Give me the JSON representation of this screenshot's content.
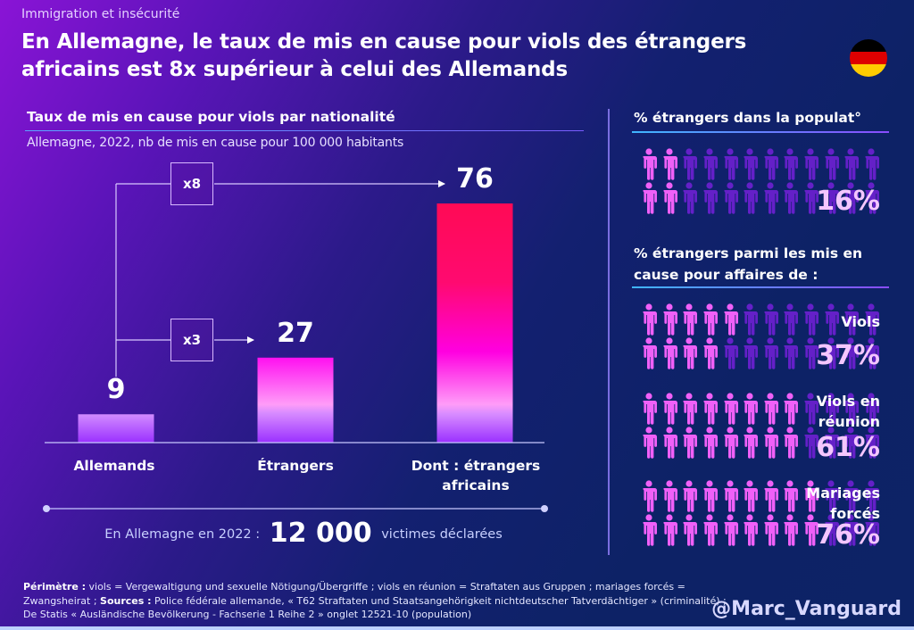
{
  "header": {
    "kicker": "Immigration et insécurité",
    "title": "En Allemagne, le taux de mis en cause pour viols des étrangers africains est 8x supérieur à celui des Allemands",
    "flag_icon": "germany-flag-icon",
    "flag_colors": [
      "#000000",
      "#dd0000",
      "#ffcc00"
    ]
  },
  "chart_data": {
    "type": "bar",
    "title": "Taux de mis en cause pour viols par nationalité",
    "subtitle": "Allemagne, 2022, nb de mis en cause pour 100 000 habitants",
    "categories": [
      "Allemands",
      "Étrangers",
      "Dont : étrangers africains"
    ],
    "values": [
      9,
      27,
      76
    ],
    "value_labels": [
      "9",
      "27",
      "76"
    ],
    "xlabel": "",
    "ylabel": "",
    "ylim": [
      0,
      76
    ],
    "grid": false,
    "annotations": [
      {
        "label": "x3",
        "from": "Allemands",
        "to": "Étrangers"
      },
      {
        "label": "x8",
        "from": "Allemands",
        "to": "Dont : étrangers africains"
      }
    ]
  },
  "victims": {
    "prefix": "En Allemagne en 2022 :",
    "number": "12 000",
    "suffix": "victimes déclarées"
  },
  "right_panel": {
    "population": {
      "heading": "% étrangers dans la populat°",
      "pct": "16%",
      "value": 16,
      "highlighted_per_row": [
        2,
        2
      ]
    },
    "offenders_heading": "% étrangers parmi les mis en cause pour affaires de :",
    "offenders": [
      {
        "label": "Viols",
        "pct": "37%",
        "value": 37,
        "highlighted_per_row": [
          5,
          4
        ]
      },
      {
        "label": "Viols en réunion",
        "pct": "61%",
        "value": 61,
        "highlighted_per_row": [
          8,
          8
        ]
      },
      {
        "label": "Mariages forcés",
        "pct": "76%",
        "value": 76,
        "highlighted_per_row": [
          9,
          9
        ]
      }
    ],
    "icons_per_row": 12,
    "person_icon": "person-icon",
    "colors": {
      "highlight": "#f060f8",
      "dim": "#6420c8"
    }
  },
  "footer": {
    "perimetre_label": "Périmètre :",
    "perimetre_text": " viols = Vergewaltigung und sexuelle Nötigung/Übergriffe ; viols en réunion = Straftaten aus Gruppen ; mariages forcés = Zwangsheirat ; ",
    "sources_label": "Sources :",
    "sources_text": " Police fédérale allemande, « T62 Straftaten und Staatsangehörigkeit nichtdeutscher Tatverdächtiger » (criminalité) ; De Statis « Ausländische Bevölkerung - Fachserie 1 Reihe 2 » onglet 12521-10 (population)",
    "handle": "@Marc_Vanguard"
  }
}
